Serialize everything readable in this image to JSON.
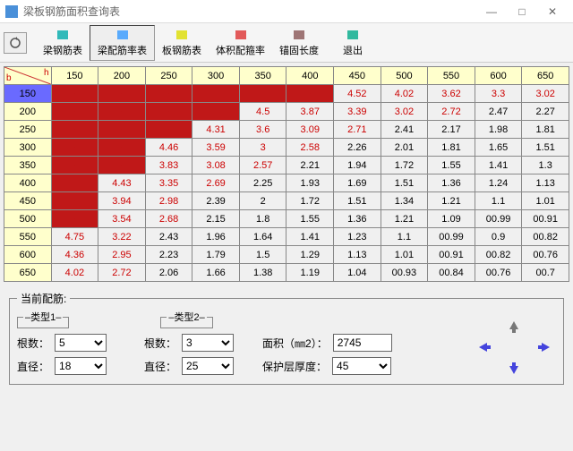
{
  "window": {
    "title": "梁板钢筋面积查询表"
  },
  "toolbar": {
    "items": [
      {
        "label": "梁钢筋表",
        "icon": "cube-icon",
        "color": "#0aa"
      },
      {
        "label": "梁配筋率表",
        "icon": "grid-icon",
        "color": "#39f",
        "active": true
      },
      {
        "label": "板钢筋表",
        "icon": "flat-icon",
        "color": "#dd0"
      },
      {
        "label": "体积配箍率",
        "icon": "hash-icon",
        "color": "#d33"
      },
      {
        "label": "锚固长度",
        "icon": "anchor-icon",
        "color": "#855"
      },
      {
        "label": "退出",
        "icon": "exit-icon",
        "color": "#0a8"
      }
    ]
  },
  "table": {
    "corner": {
      "b": "b",
      "h": "h"
    },
    "cols": [
      "150",
      "200",
      "250",
      "300",
      "350",
      "400",
      "450",
      "500",
      "550",
      "600",
      "650"
    ],
    "sel_col": 0,
    "rows": [
      "150",
      "200",
      "250",
      "300",
      "350",
      "400",
      "450",
      "500",
      "550",
      "600",
      "650"
    ],
    "sel_row": 0,
    "cells": [
      [
        {
          "f": 1
        },
        {
          "f": 1
        },
        {
          "f": 1
        },
        {
          "f": 1
        },
        {
          "f": 1
        },
        {
          "f": 1
        },
        {
          "v": "4.52",
          "r": 1
        },
        {
          "v": "4.02",
          "r": 1
        },
        {
          "v": "3.62",
          "r": 1
        },
        {
          "v": "3.3",
          "r": 1
        },
        {
          "v": "3.02",
          "r": 1
        }
      ],
      [
        {
          "f": 1
        },
        {
          "f": 1
        },
        {
          "f": 1
        },
        {
          "f": 1
        },
        {
          "v": "4.5",
          "r": 1
        },
        {
          "v": "3.87",
          "r": 1
        },
        {
          "v": "3.39",
          "r": 1
        },
        {
          "v": "3.02",
          "r": 1
        },
        {
          "v": "2.72",
          "r": 1
        },
        {
          "v": "2.47"
        },
        {
          "v": "2.27"
        }
      ],
      [
        {
          "f": 1
        },
        {
          "f": 1
        },
        {
          "f": 1
        },
        {
          "v": "4.31",
          "r": 1
        },
        {
          "v": "3.6",
          "r": 1
        },
        {
          "v": "3.09",
          "r": 1
        },
        {
          "v": "2.71",
          "r": 1
        },
        {
          "v": "2.41"
        },
        {
          "v": "2.17"
        },
        {
          "v": "1.98"
        },
        {
          "v": "1.81"
        }
      ],
      [
        {
          "f": 1
        },
        {
          "f": 1
        },
        {
          "v": "4.46",
          "r": 1
        },
        {
          "v": "3.59",
          "r": 1
        },
        {
          "v": "3",
          "r": 1
        },
        {
          "v": "2.58",
          "r": 1
        },
        {
          "v": "2.26"
        },
        {
          "v": "2.01"
        },
        {
          "v": "1.81"
        },
        {
          "v": "1.65"
        },
        {
          "v": "1.51"
        }
      ],
      [
        {
          "f": 1
        },
        {
          "f": 1
        },
        {
          "v": "3.83",
          "r": 1
        },
        {
          "v": "3.08",
          "r": 1
        },
        {
          "v": "2.57",
          "r": 1
        },
        {
          "v": "2.21"
        },
        {
          "v": "1.94"
        },
        {
          "v": "1.72"
        },
        {
          "v": "1.55"
        },
        {
          "v": "1.41"
        },
        {
          "v": "1.3"
        }
      ],
      [
        {
          "f": 1
        },
        {
          "v": "4.43",
          "r": 1
        },
        {
          "v": "3.35",
          "r": 1
        },
        {
          "v": "2.69",
          "r": 1
        },
        {
          "v": "2.25"
        },
        {
          "v": "1.93"
        },
        {
          "v": "1.69"
        },
        {
          "v": "1.51"
        },
        {
          "v": "1.36"
        },
        {
          "v": "1.24"
        },
        {
          "v": "1.13"
        }
      ],
      [
        {
          "f": 1
        },
        {
          "v": "3.94",
          "r": 1
        },
        {
          "v": "2.98",
          "r": 1
        },
        {
          "v": "2.39"
        },
        {
          "v": "2"
        },
        {
          "v": "1.72"
        },
        {
          "v": "1.51"
        },
        {
          "v": "1.34"
        },
        {
          "v": "1.21"
        },
        {
          "v": "1.1"
        },
        {
          "v": "1.01"
        }
      ],
      [
        {
          "f": 1
        },
        {
          "v": "3.54",
          "r": 1
        },
        {
          "v": "2.68",
          "r": 1
        },
        {
          "v": "2.15"
        },
        {
          "v": "1.8"
        },
        {
          "v": "1.55"
        },
        {
          "v": "1.36"
        },
        {
          "v": "1.21"
        },
        {
          "v": "1.09"
        },
        {
          "v": "00.99"
        },
        {
          "v": "00.91"
        }
      ],
      [
        {
          "v": "4.75",
          "r": 1
        },
        {
          "v": "3.22",
          "r": 1
        },
        {
          "v": "2.43"
        },
        {
          "v": "1.96"
        },
        {
          "v": "1.64"
        },
        {
          "v": "1.41"
        },
        {
          "v": "1.23"
        },
        {
          "v": "1.1"
        },
        {
          "v": "00.99"
        },
        {
          "v": "0.9"
        },
        {
          "v": "00.82"
        }
      ],
      [
        {
          "v": "4.36",
          "r": 1
        },
        {
          "v": "2.95",
          "r": 1
        },
        {
          "v": "2.23"
        },
        {
          "v": "1.79"
        },
        {
          "v": "1.5"
        },
        {
          "v": "1.29"
        },
        {
          "v": "1.13"
        },
        {
          "v": "1.01"
        },
        {
          "v": "00.91"
        },
        {
          "v": "00.82"
        },
        {
          "v": "00.76"
        }
      ],
      [
        {
          "v": "4.02",
          "r": 1
        },
        {
          "v": "2.72",
          "r": 1
        },
        {
          "v": "2.06"
        },
        {
          "v": "1.66"
        },
        {
          "v": "1.38"
        },
        {
          "v": "1.19"
        },
        {
          "v": "1.04"
        },
        {
          "v": "00.93"
        },
        {
          "v": "00.84"
        },
        {
          "v": "00.76"
        },
        {
          "v": "00.7"
        }
      ]
    ]
  },
  "bottom": {
    "legend": "当前配筋:",
    "type1": "–类型1–",
    "type2": "–类型2–",
    "count_label": "根数：",
    "diam_label": "直径：",
    "area_label": "面积（㎜2）：",
    "cover_label": "保护层厚度：",
    "count1": "5",
    "diam1": "18",
    "count2": "3",
    "diam2": "25",
    "area": "2745",
    "cover": "45"
  }
}
